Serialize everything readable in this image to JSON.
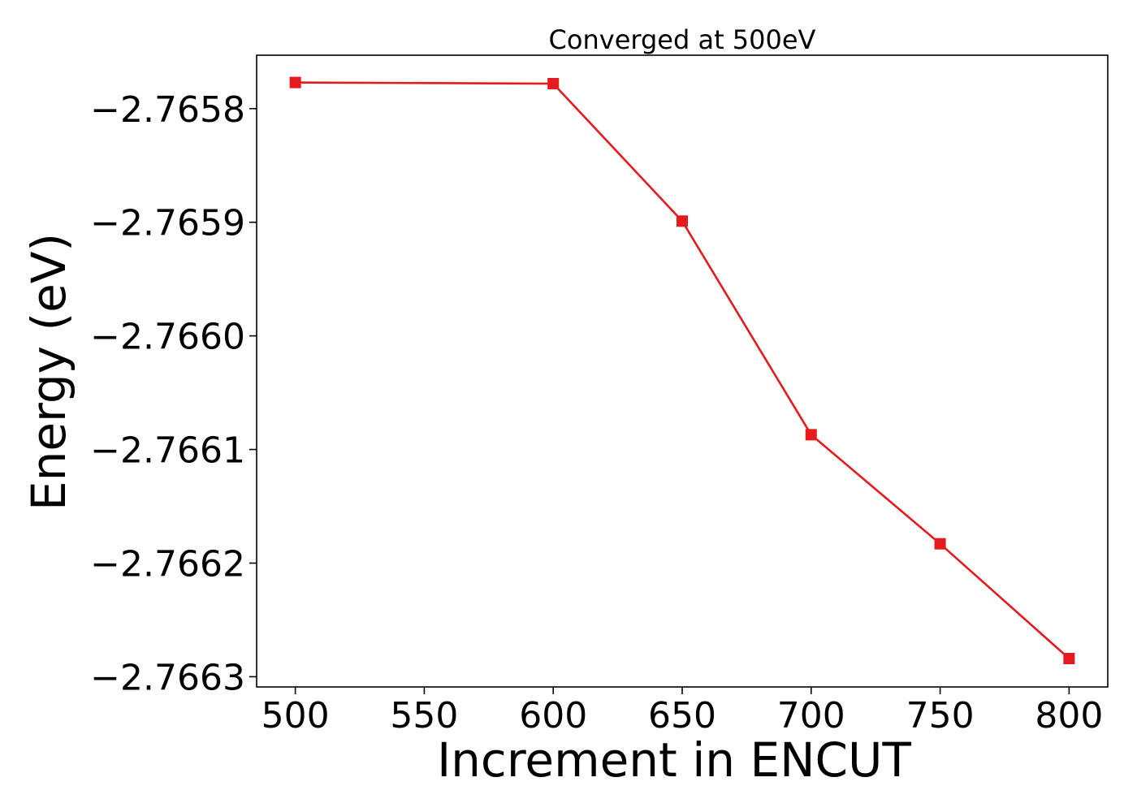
{
  "chart_data": {
    "type": "line",
    "title": "Converged at 500eV",
    "xlabel": "Increment in ENCUT",
    "ylabel": "Energy (eV)",
    "x": [
      500,
      600,
      650,
      700,
      750,
      800
    ],
    "series": [
      {
        "values": [
          -2.765777,
          -2.765778,
          -2.765899,
          -2.766087,
          -2.766183,
          -2.766284
        ],
        "color": "#e41a1c",
        "marker": "square"
      }
    ],
    "xlim": [
      485,
      815
    ],
    "ylim": [
      -2.766309,
      -2.765753
    ],
    "xticks": [
      500,
      550,
      600,
      650,
      700,
      750,
      800
    ],
    "xtick_labels": [
      "500",
      "550",
      "600",
      "650",
      "700",
      "750",
      "800"
    ],
    "yticks": [
      -2.7663,
      -2.7662,
      -2.7661,
      -2.766,
      -2.7659,
      -2.7658
    ],
    "ytick_labels": [
      "−2.7663",
      "−2.7662",
      "−2.7661",
      "−2.7660",
      "−2.7659",
      "−2.7658"
    ],
    "grid": false,
    "legend": false
  }
}
